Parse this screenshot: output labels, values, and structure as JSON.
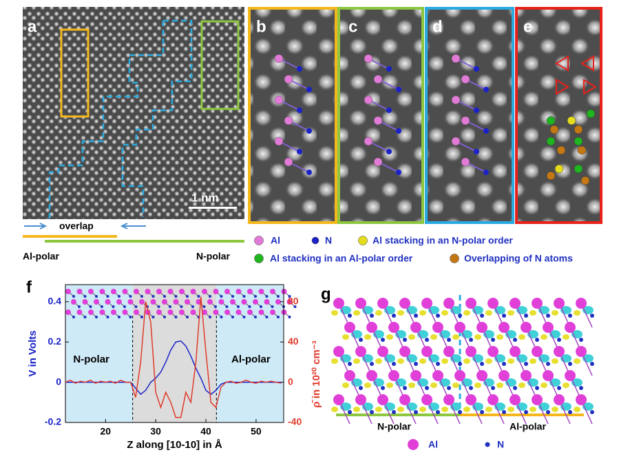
{
  "panel_labels": [
    "a",
    "b",
    "c",
    "d",
    "e",
    "f",
    "g"
  ],
  "panel_a": {
    "scale_bar": "1 nm",
    "overlap": "overlap",
    "al_polar": "Al-polar",
    "n_polar": "N-polar"
  },
  "legend": [
    {
      "label": "Al",
      "color": "#e27ad8"
    },
    {
      "label": "N",
      "color": "#1a22c8"
    },
    {
      "label": "Al stacking in an N-polar order",
      "color": "#e6dc1e"
    },
    {
      "label": "Al stacking in an Al-polar order",
      "color": "#1fb51f"
    },
    {
      "label": "Overlapping of N atoms",
      "color": "#c47814"
    }
  ],
  "panel_g": {
    "n_polar": "N-polar",
    "al_polar": "Al-polar",
    "al": "Al",
    "n": "N"
  },
  "chart_data": {
    "type": "line",
    "xlabel": "Z along [10-10] in Å",
    "ylabel": "V in Volts",
    "y2label": "ρ̄ in 10²⁰ cm⁻³",
    "annotations": [
      "N-polar",
      "Al-polar"
    ],
    "boundaries": [
      25.4,
      42.1
    ],
    "xlim": [
      12,
      55.5
    ],
    "xticks": [
      20,
      30,
      40,
      50
    ],
    "ylim": [
      -0.2,
      0.485
    ],
    "yticks": [
      -0.2,
      0,
      0.2,
      0.4
    ],
    "y2lim": [
      -40,
      97
    ],
    "y2ticks": [
      -40,
      0,
      40,
      80
    ],
    "x": [
      12,
      13,
      14,
      15,
      16,
      17,
      18,
      19,
      20,
      21,
      22,
      23,
      24,
      25,
      26,
      27,
      28,
      29,
      30,
      31,
      32,
      33,
      34,
      35,
      36,
      37,
      38,
      39,
      40,
      41,
      42,
      43,
      44,
      45,
      46,
      47,
      48,
      49,
      50,
      51,
      52,
      53,
      54,
      55
    ],
    "series": [
      {
        "name": "V",
        "color": "#1a22c8",
        "values": [
          0,
          0,
          0,
          0,
          0,
          0,
          0,
          0,
          0,
          0,
          0,
          0,
          0,
          0,
          -0.03,
          -0.06,
          -0.04,
          0,
          0.02,
          0.05,
          0.1,
          0.16,
          0.2,
          0.205,
          0.18,
          0.13,
          0.07,
          0.02,
          -0.04,
          -0.06,
          -0.04,
          -0.01,
          0,
          0,
          0,
          0,
          0,
          0,
          0,
          0,
          0,
          0,
          0,
          0
        ]
      },
      {
        "name": "ρ̄",
        "color": "#e03a2a",
        "axis": "y2",
        "values": [
          0,
          2,
          -1,
          1,
          0,
          2,
          -1,
          1,
          0,
          1,
          -1,
          2,
          0,
          0,
          -15,
          20,
          80,
          60,
          -10,
          -25,
          -10,
          -20,
          -35,
          -35,
          -10,
          -20,
          20,
          85,
          30,
          -20,
          -25,
          -5,
          0,
          1,
          -1,
          0,
          2,
          0,
          -1,
          1,
          0,
          1,
          0,
          -1
        ]
      }
    ]
  }
}
